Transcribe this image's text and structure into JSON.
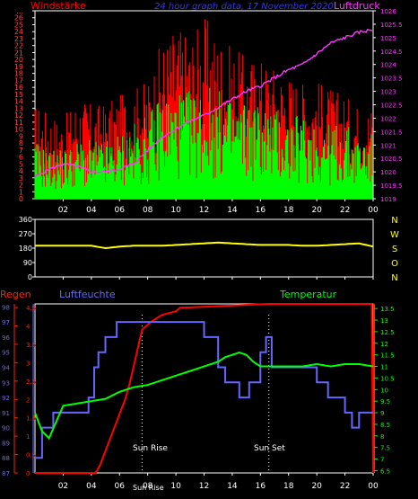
{
  "colors": {
    "background": "#000000",
    "axis": "#ffffff",
    "gust": "#ff0000",
    "wind": "#00ff00",
    "pressure": "#ff33ff",
    "direction": "#ffff00",
    "rain": "#ff0000",
    "humidity": "#6666ff",
    "temperature": "#00ff00",
    "rain_axis": "#ff2200",
    "humidity_axis": "#6666ff",
    "temperature_axis": "#00ff00",
    "panel1_left_ticks": "#ff4444",
    "panel1_right_ticks": "#ff33ff",
    "title": "#3333ff",
    "sun_marker": "#ffffff"
  },
  "header": {
    "wind_label": "Windstärke",
    "title": "24 hour graph data, 17 November 2020",
    "pressure_label": "Luftdruck"
  },
  "labels": {
    "rain": "Regen",
    "humidity": "Luftfeuchte",
    "temperature": "Temperatur",
    "sun_rise": "Sun Rise",
    "sun_set": "Sun Set",
    "sun_rise_time": "Sun Rise"
  },
  "chart_data": [
    {
      "type": "line",
      "name": "wind-and-pressure",
      "x_ticks": [
        "02",
        "04",
        "06",
        "08",
        "10",
        "12",
        "14",
        "16",
        "18",
        "20",
        "22",
        "00"
      ],
      "xlim": [
        0,
        24
      ],
      "y_left_ticks": [
        "0",
        "1",
        "2",
        "3",
        "4",
        "5",
        "6",
        "7",
        "8",
        "9",
        "10",
        "11",
        "12",
        "13",
        "14",
        "15",
        "16",
        "17",
        "18",
        "19",
        "20",
        "21",
        "22",
        "23",
        "24",
        "25",
        "26",
        "..."
      ],
      "ylim_left": [
        0,
        27
      ],
      "y_right_ticks": [
        "1019",
        "1019.5",
        "1020",
        "1020.5",
        "1021",
        "1021.5",
        "1022",
        "1022.5",
        "1023",
        "1023.5",
        "1024",
        "1024.5",
        "1025",
        "1025.5",
        "1026"
      ],
      "ylim_right": [
        1019,
        1026
      ],
      "series": [
        {
          "role": "gust",
          "x": [
            0,
            1,
            2,
            3,
            4,
            5,
            6,
            7,
            8,
            9,
            10,
            11,
            12,
            13,
            14,
            15,
            16,
            17,
            18,
            19,
            20,
            21,
            22,
            23,
            24
          ],
          "values": [
            12,
            11,
            10,
            13,
            12,
            12,
            13,
            14,
            15,
            20,
            22,
            21,
            23,
            21,
            19,
            18,
            18,
            17,
            16,
            15,
            15,
            14,
            13,
            12,
            12
          ]
        },
        {
          "role": "wind",
          "x": [
            0,
            1,
            2,
            3,
            4,
            5,
            6,
            7,
            8,
            9,
            10,
            11,
            12,
            13,
            14,
            15,
            16,
            17,
            18,
            19,
            20,
            21,
            22,
            23,
            24
          ],
          "values": [
            7,
            6,
            6,
            7,
            7,
            7,
            8,
            9,
            10,
            13,
            13,
            13,
            14,
            13,
            12,
            12,
            12,
            11,
            10,
            10,
            10,
            9,
            9,
            8,
            8
          ]
        },
        {
          "role": "pressure",
          "x": [
            0,
            1,
            2,
            3,
            4,
            5,
            6,
            7,
            8,
            9,
            10,
            11,
            12,
            13,
            14,
            15,
            16,
            17,
            18,
            19,
            20,
            21,
            22,
            23,
            24
          ],
          "values": [
            1019.8,
            1020.1,
            1020.3,
            1020.2,
            1020.0,
            1020.0,
            1020.1,
            1020.3,
            1020.8,
            1021.3,
            1021.6,
            1021.9,
            1022.1,
            1022.4,
            1022.7,
            1023.0,
            1023.2,
            1023.5,
            1023.8,
            1024.0,
            1024.4,
            1024.8,
            1025.0,
            1025.2,
            1025.3
          ]
        }
      ]
    },
    {
      "type": "line",
      "name": "wind-direction",
      "x_ticks": [
        "02",
        "04",
        "06",
        "08",
        "10",
        "12",
        "14",
        "16",
        "18",
        "20",
        "22",
        "00"
      ],
      "xlim": [
        0,
        24
      ],
      "y_left_ticks": [
        "0",
        "90",
        "180",
        "270",
        "360"
      ],
      "ylim_left": [
        0,
        360
      ],
      "y_right_ticks": [
        "N",
        "W",
        "S",
        "O",
        "N"
      ],
      "series": [
        {
          "role": "direction",
          "x": [
            0,
            1,
            2,
            3,
            4,
            5,
            6,
            7,
            8,
            9,
            10,
            11,
            12,
            13,
            14,
            15,
            16,
            17,
            18,
            19,
            20,
            21,
            22,
            23,
            24
          ],
          "values": [
            195,
            195,
            195,
            195,
            195,
            180,
            190,
            195,
            195,
            195,
            200,
            205,
            210,
            215,
            210,
            205,
            200,
            200,
            200,
            195,
            195,
            200,
            205,
            210,
            190
          ]
        }
      ]
    },
    {
      "type": "line",
      "name": "rain-humidity-temperature",
      "x_ticks": [
        "02",
        "04",
        "06",
        "08",
        "10",
        "12",
        "14",
        "16",
        "18",
        "20",
        "22",
        "00"
      ],
      "xlim": [
        0,
        24
      ],
      "y_rain_ticks": [
        "0",
        "0.5",
        "1",
        "1.5",
        "2",
        "2.5",
        "3",
        "3.5",
        "4",
        "4.5"
      ],
      "ylim_rain": [
        0,
        4.6
      ],
      "y_humidity_ticks": [
        "87",
        "88",
        "89",
        "90",
        "91",
        "92",
        "93",
        "94",
        "95",
        "96",
        "97",
        "98"
      ],
      "ylim_humidity": [
        87,
        98.2
      ],
      "y_temperature_ticks": [
        "6.5",
        "7",
        "7.5",
        "8",
        "8.5",
        "9",
        "9.5",
        "10",
        "10.5",
        "11",
        "11.5",
        "12",
        "12.5",
        "13",
        "13.5"
      ],
      "ylim_temperature": [
        6.4,
        13.7
      ],
      "sun_rise_hour": 7.6,
      "sun_set_hour": 16.6,
      "series": [
        {
          "role": "rain",
          "x": [
            0,
            4.3,
            4.6,
            4.9,
            5.2,
            5.5,
            5.8,
            6.1,
            6.4,
            6.7,
            7.0,
            7.3,
            7.6,
            7.9,
            8.2,
            8.6,
            9,
            10,
            10.3,
            10.6,
            16.6,
            23.9,
            24
          ],
          "values": [
            0,
            0,
            0.2,
            0.5,
            0.8,
            1.1,
            1.4,
            1.7,
            2.0,
            2.4,
            2.9,
            3.4,
            3.9,
            4.0,
            4.1,
            4.2,
            4.3,
            4.4,
            4.5,
            4.5,
            4.6,
            4.6,
            0
          ]
        },
        {
          "role": "humidity",
          "x": [
            0,
            0.5,
            0.5,
            1.3,
            1.3,
            3.8,
            3.8,
            4.2,
            4.2,
            4.5,
            4.5,
            5,
            5,
            5.8,
            5.8,
            12,
            12,
            13,
            13,
            13.5,
            13.5,
            14.5,
            14.5,
            15.2,
            15.2,
            16,
            16,
            16.4,
            16.4,
            16.8,
            16.8,
            20,
            20,
            20.8,
            20.8,
            22,
            22,
            22.5,
            22.5,
            23,
            23,
            24
          ],
          "values": [
            88,
            88,
            90,
            90,
            91,
            91,
            92,
            92,
            94,
            94,
            95,
            95,
            96,
            96,
            97,
            97,
            96,
            96,
            94,
            94,
            93,
            93,
            92,
            92,
            93,
            93,
            95,
            95,
            96,
            96,
            94,
            94,
            93,
            93,
            92,
            92,
            91,
            91,
            90,
            90,
            91,
            91
          ]
        },
        {
          "role": "temperature",
          "x": [
            0,
            0.5,
            1,
            1.5,
            2,
            3,
            4,
            5,
            6,
            7,
            8,
            9,
            10,
            11,
            12,
            13,
            13.5,
            14,
            14.5,
            15,
            15.5,
            16,
            16.5,
            17,
            18,
            19,
            20,
            21,
            22,
            23,
            24
          ],
          "values": [
            9.0,
            8.2,
            7.9,
            8.6,
            9.3,
            9.4,
            9.5,
            9.6,
            9.9,
            10.1,
            10.2,
            10.4,
            10.6,
            10.8,
            11.0,
            11.2,
            11.4,
            11.5,
            11.6,
            11.5,
            11.2,
            11.0,
            11.0,
            11.0,
            11.0,
            11.0,
            11.1,
            11.0,
            11.1,
            11.1,
            11.0
          ]
        }
      ]
    }
  ]
}
